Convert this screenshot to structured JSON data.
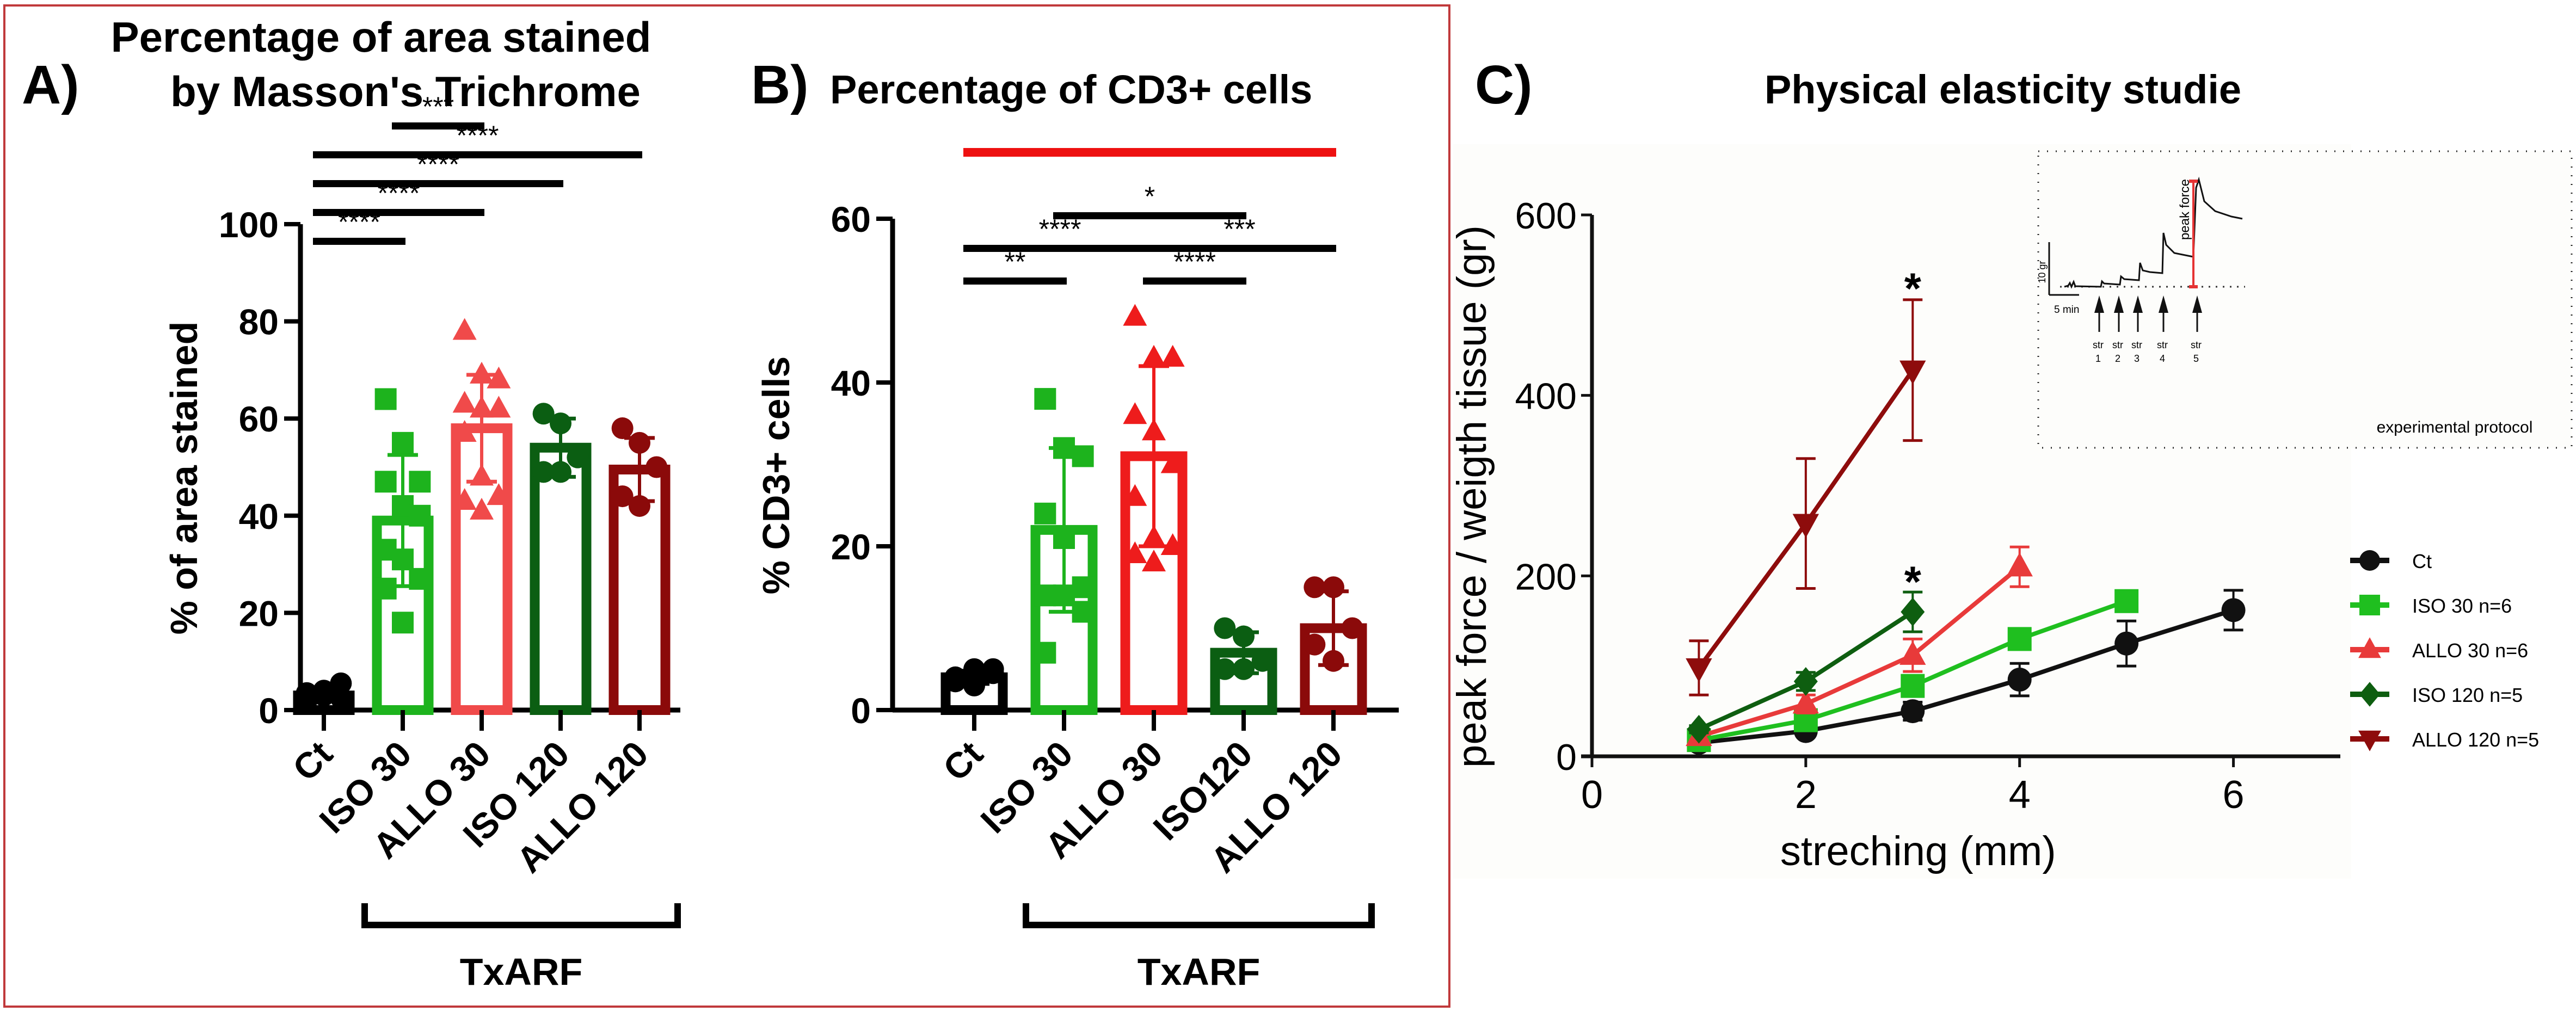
{
  "figure": {
    "frame_color": "#c0393b"
  },
  "chart_data": [
    {
      "id": "A",
      "type": "bar",
      "panel_label": "A)",
      "title_lines": [
        "Percentage of area stained",
        "by Masson's Trichrome"
      ],
      "ylabel": "% of area stained",
      "xlabel": "",
      "group_label": "TxARF",
      "ylim": [
        0,
        100
      ],
      "yticks": [
        0,
        20,
        40,
        60,
        80,
        100
      ],
      "categories": [
        "Ct",
        "ISO 30",
        "ALLO 30",
        "ISO 120",
        "ALLO 120"
      ],
      "colors": [
        "#000000",
        "#1db31d",
        "#f04a4a",
        "#0b5e12",
        "#8b0a0a"
      ],
      "markers": [
        "circle",
        "square",
        "triangle",
        "circle",
        "circle"
      ],
      "values": [
        3,
        39,
        58,
        54,
        49.5
      ],
      "sd": [
        1.2,
        13.5,
        11,
        6,
        6.5
      ],
      "points": [
        [
          2,
          3,
          2.5,
          3.5,
          4,
          5.5,
          2.2,
          3
        ],
        [
          64,
          55,
          47,
          47,
          42,
          40,
          33,
          31,
          27,
          25,
          18
        ],
        [
          78,
          69,
          68,
          63,
          62,
          62,
          57,
          48,
          44,
          43,
          41
        ],
        [
          61,
          59,
          52,
          49,
          49
        ],
        [
          58,
          55,
          50,
          44,
          42
        ]
      ],
      "significance": [
        {
          "from": 1,
          "to": 2,
          "label": "***",
          "level": 5
        },
        {
          "from": 0,
          "to": 4,
          "label": "****",
          "level": 4
        },
        {
          "from": 0,
          "to": 3,
          "label": "****",
          "level": 3
        },
        {
          "from": 0,
          "to": 2,
          "label": "****",
          "level": 2
        },
        {
          "from": 0,
          "to": 1,
          "label": "****",
          "level": 1
        }
      ]
    },
    {
      "id": "B",
      "type": "bar",
      "panel_label": "B)",
      "title_lines": [
        "Percentage of CD3+ cells"
      ],
      "ylabel": "% CD3+ cells",
      "xlabel": "",
      "group_label": "TxARF",
      "ylim": [
        0,
        60
      ],
      "yticks": [
        0,
        20,
        40,
        60
      ],
      "categories": [
        "Ct",
        "ISO 30",
        "ALLO 30",
        "ISO120",
        "ALLO 120"
      ],
      "colors": [
        "#000000",
        "#1db31d",
        "#ee1c1c",
        "#0b5e12",
        "#8b0a0a"
      ],
      "markers": [
        "circle",
        "square",
        "square",
        "circle",
        "circle"
      ],
      "marker_shapes": [
        "circle",
        "square",
        "triangle",
        "circle",
        "circle"
      ],
      "values": [
        4,
        22,
        31,
        7,
        10
      ],
      "sd": [
        0.8,
        10,
        11,
        2.5,
        4.5
      ],
      "points": [
        [
          3.5,
          4.5,
          5,
          4,
          3,
          4.5,
          3.8,
          5
        ],
        [
          38,
          32,
          31,
          24,
          21,
          15,
          14,
          14,
          12,
          7
        ],
        [
          48,
          43,
          43,
          36,
          34,
          30,
          26,
          21,
          20,
          19,
          18
        ],
        [
          10,
          9,
          6,
          5,
          5
        ],
        [
          15,
          15,
          10,
          8,
          6
        ]
      ],
      "significance": [
        {
          "from": 0,
          "to": 1,
          "label": "**",
          "level": 1
        },
        {
          "from": 0,
          "to": 2,
          "label": "****",
          "level": 2
        },
        {
          "from": 2,
          "to": 3,
          "label": "****",
          "level": 1
        },
        {
          "from": 2,
          "to": 4,
          "label": "***",
          "level": 2
        },
        {
          "from": 1,
          "to": 3,
          "label": "*",
          "level": 3
        }
      ],
      "red_bracket": {
        "from": 0,
        "to": 4
      }
    },
    {
      "id": "C",
      "type": "line",
      "panel_label": "C)",
      "title": "Physical elasticity studie",
      "xlabel": "streching (mm)",
      "ylabel": "peak force / weigth tissue (gr)",
      "xlim": [
        0,
        7
      ],
      "ylim": [
        0,
        600
      ],
      "xticks": [
        0,
        2,
        4,
        6
      ],
      "yticks": [
        0,
        200,
        400,
        600
      ],
      "legend_position": "right",
      "series": [
        {
          "name": "Ct",
          "color": "#111111",
          "marker": "circle",
          "x": [
            1,
            2,
            3,
            4,
            5,
            6
          ],
          "y": [
            15,
            28,
            50,
            85,
            125,
            162
          ],
          "err": [
            5,
            6,
            10,
            18,
            25,
            22
          ]
        },
        {
          "name": "ISO 30  n=6",
          "color": "#1fbf1f",
          "marker": "square",
          "x": [
            1,
            2,
            3,
            4,
            5
          ],
          "y": [
            18,
            40,
            78,
            130,
            172
          ],
          "err": [
            4,
            6,
            8,
            8,
            6
          ]
        },
        {
          "name": "ALLO 30  n=6",
          "color": "#e83a3a",
          "marker": "triangle",
          "x": [
            1,
            2,
            3,
            4
          ],
          "y": [
            22,
            58,
            112,
            210
          ],
          "err": [
            4,
            10,
            18,
            22
          ]
        },
        {
          "name": "ISO 120  n=5",
          "color": "#0e5e10",
          "marker": "diamond",
          "x": [
            1,
            2,
            3
          ],
          "y": [
            30,
            83,
            160
          ],
          "err": [
            4,
            10,
            22
          ]
        },
        {
          "name": "ALLO 120  n=5",
          "color": "#8e0c0c",
          "marker": "triangle-down",
          "x": [
            1,
            2,
            3
          ],
          "y": [
            98,
            258,
            428
          ],
          "err": [
            30,
            72,
            78
          ]
        }
      ],
      "annotations": [
        {
          "x": 3,
          "y": 520,
          "text": "*"
        },
        {
          "x": 3,
          "y": 195,
          "text": "*"
        }
      ],
      "inset": {
        "title": "experimental protocol",
        "y_scale_label": "10  gr",
        "x_scale_label": "5 min",
        "peak_label": "peak force",
        "arrows": [
          {
            "label": "str",
            "num": "1"
          },
          {
            "label": "str",
            "num": "2"
          },
          {
            "label": "str",
            "num": "3"
          },
          {
            "label": "str",
            "num": "4"
          },
          {
            "label": "str",
            "num": "5"
          }
        ],
        "peak_color": "#e53333"
      }
    }
  ]
}
